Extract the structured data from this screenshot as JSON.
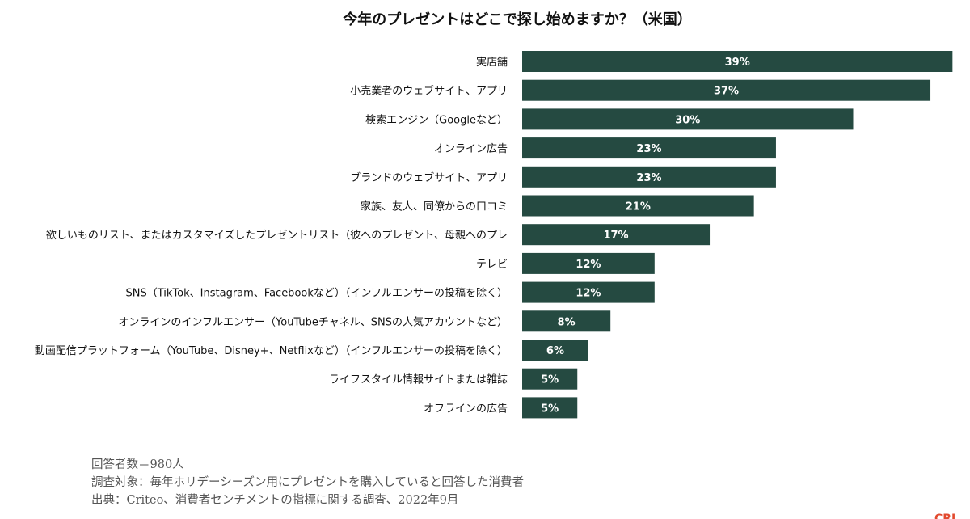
{
  "chart_data": {
    "type": "bar",
    "orientation": "horizontal",
    "title": "今年のプレゼントはどこで探し始めますか？（米国）",
    "categories": [
      "実店舗",
      "小売業者のウェブサイト、アプリ",
      "検索エンジン（Googleなど）",
      "オンライン広告",
      "ブランドのウェブサイト、アプリ",
      "家族、友人、同僚からの口コミ",
      "欲しいものリスト、またはカスタマイズしたプレゼントリスト（彼へのプレゼント、母親へのプレ",
      "テレビ",
      "SNS（TikTok、Instagram、Facebookなど）（インフルエンサーの投稿を除く）",
      "オンラインのインフルエンサー（YouTubeチャネル、SNSの人気アカウントなど）",
      "動画配信プラットフォーム（YouTube、Disney+、Netflixなど）（インフルエンサーの投稿を除く）",
      "ライフスタイル情報サイトまたは雑誌",
      "オフラインの広告"
    ],
    "values": [
      39,
      37,
      30,
      23,
      23,
      21,
      17,
      12,
      12,
      8,
      6,
      5,
      5
    ],
    "value_labels": [
      "39%",
      "37%",
      "30%",
      "23%",
      "23%",
      "21%",
      "17%",
      "12%",
      "12%",
      "8%",
      "6%",
      "5%",
      "5%"
    ],
    "xlim": [
      0,
      40
    ],
    "unit": "%",
    "grid": false,
    "bar_color": "#254a41"
  },
  "notes": [
    "回答者数＝980人",
    "調査対象：毎年ホリデーシーズン用にプレゼントを購入していると回答した消費者",
    "出典：Criteo、消費者センチメントの指標に関する調査、2022年9月"
  ],
  "brand_mark": "CRI"
}
